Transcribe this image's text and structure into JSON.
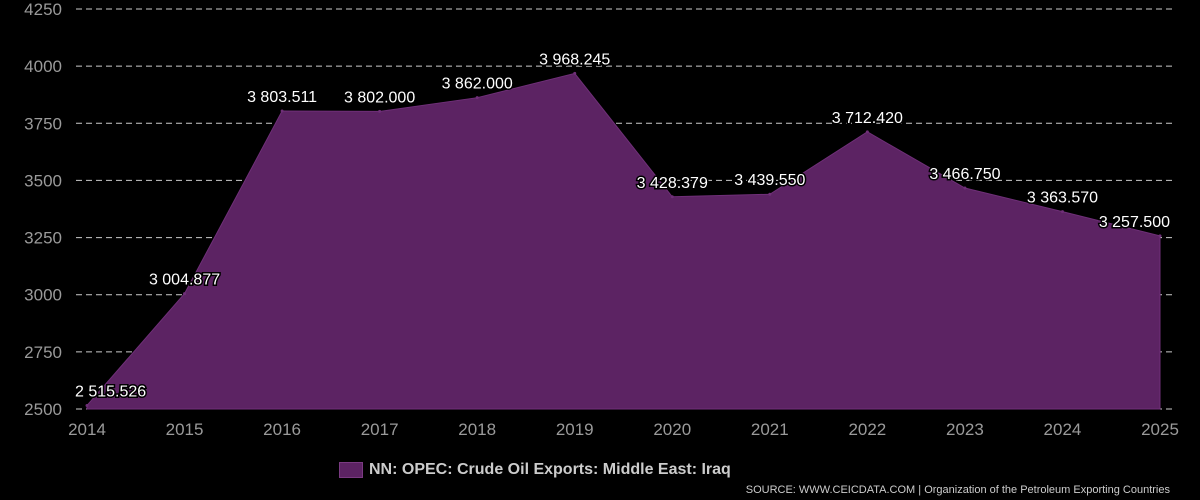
{
  "chart_data": {
    "type": "area",
    "x": [
      "2014",
      "2015",
      "2016",
      "2017",
      "2018",
      "2019",
      "2020",
      "2021",
      "2022",
      "2023",
      "2024",
      "2025"
    ],
    "series": [
      {
        "name": "NN: OPEC: Crude Oil Exports: Middle East: Iraq",
        "values": [
          2515.526,
          3004.877,
          3803.511,
          3802.0,
          3862.0,
          3968.245,
          3428.379,
          3439.55,
          3712.42,
          3466.75,
          3363.57,
          3257.5
        ],
        "labels": [
          "2 515.526",
          "3 004.877",
          "3 803.511",
          "3 802.000",
          "3 862.000",
          "3 968.245",
          "3 428.379",
          "3 439.550",
          "3 712.420",
          "3 466.750",
          "3 363.570",
          "3 257.500"
        ]
      }
    ],
    "ylim": [
      2500,
      4250
    ],
    "yticks": [
      "2500",
      "2750",
      "3000",
      "3250",
      "3500",
      "3750",
      "4000",
      "4250"
    ],
    "grid": true,
    "legend_position": "bottom",
    "colors": {
      "fill": "#5c2363",
      "stroke": "#6f2f78",
      "grid": "#cccccc",
      "text": "#9a9a9a",
      "label": "#ffffff",
      "background": "#000000"
    }
  },
  "footer": {
    "source": "SOURCE: WWW.CEICDATA.COM | Organization of the Petroleum Exporting Countries"
  }
}
